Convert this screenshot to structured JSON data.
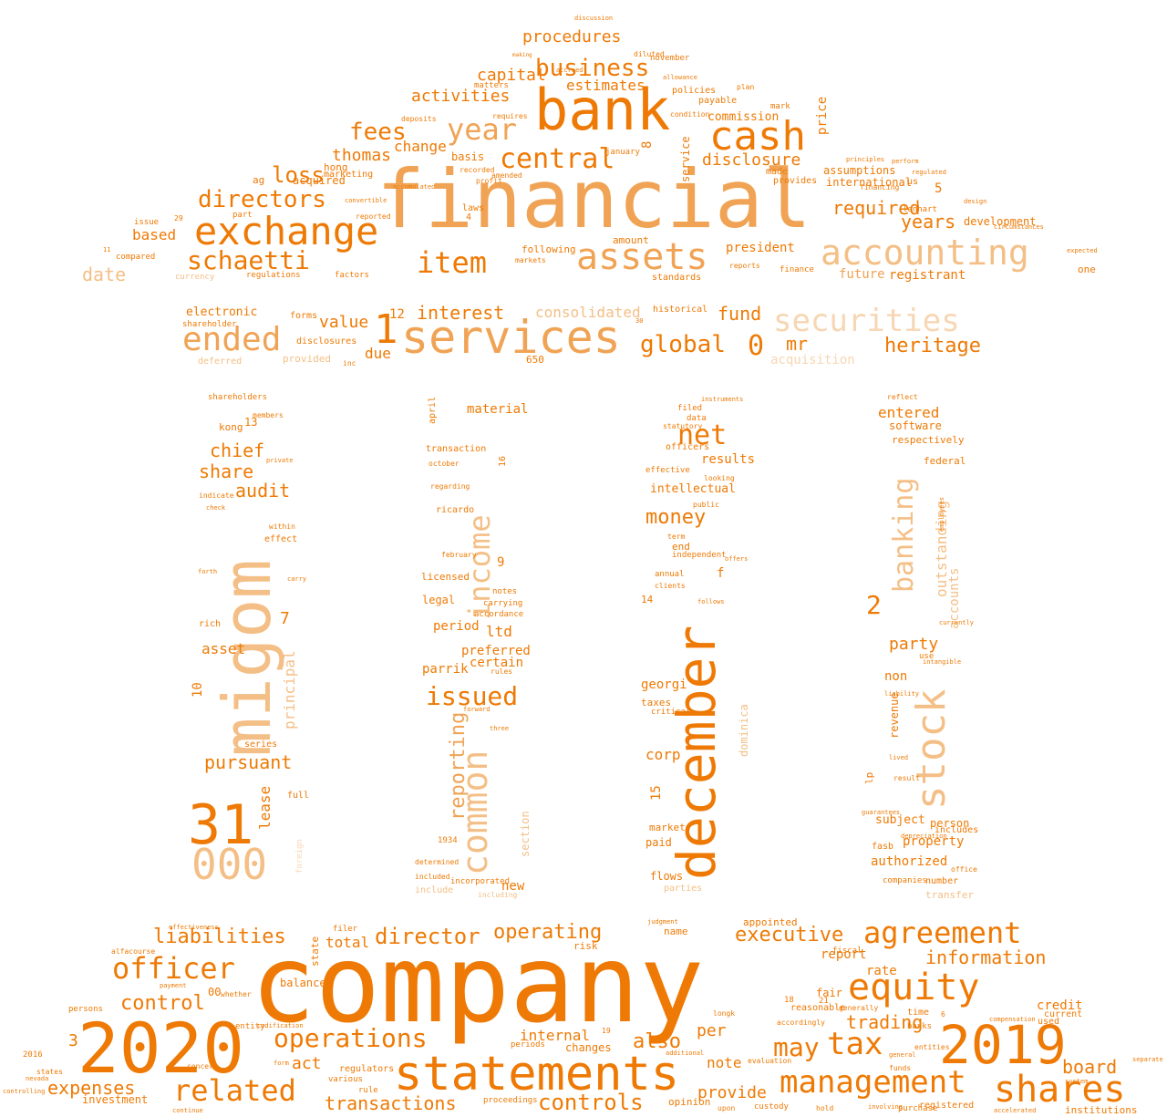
{
  "palette": {
    "dark": "#ee7a05",
    "mid": "#f0a354",
    "light": "#f4bf86",
    "pale": "#f7d6b3"
  },
  "words": [
    {
      "text": "company",
      "tone": "dark"
    },
    {
      "text": "financial",
      "tone": "mid"
    },
    {
      "text": "2020",
      "tone": "dark"
    },
    {
      "text": "2019",
      "tone": "dark"
    },
    {
      "text": "statements",
      "tone": "dark"
    },
    {
      "text": "bank",
      "tone": "dark"
    },
    {
      "text": "december",
      "tone": "dark"
    },
    {
      "text": "migom",
      "tone": "light"
    },
    {
      "text": "services",
      "tone": "mid"
    },
    {
      "text": "cash",
      "tone": "dark"
    },
    {
      "text": "exchange",
      "tone": "dark"
    },
    {
      "text": "accounting",
      "tone": "light"
    },
    {
      "text": "assets",
      "tone": "mid"
    },
    {
      "text": "stock",
      "tone": "light"
    },
    {
      "text": "shares",
      "tone": "dark"
    },
    {
      "text": "equity",
      "tone": "dark"
    },
    {
      "text": "management",
      "tone": "dark"
    },
    {
      "text": "tax",
      "tone": "dark"
    },
    {
      "text": "agreement",
      "tone": "dark"
    },
    {
      "text": "31",
      "tone": "dark"
    },
    {
      "text": "000",
      "tone": "light"
    },
    {
      "text": "securities",
      "tone": "pale"
    },
    {
      "text": "ended",
      "tone": "mid"
    },
    {
      "text": "year",
      "tone": "mid"
    },
    {
      "text": "item",
      "tone": "dark"
    },
    {
      "text": "schaetti",
      "tone": "dark"
    },
    {
      "text": "officer",
      "tone": "dark"
    },
    {
      "text": "related",
      "tone": "dark"
    },
    {
      "text": "business",
      "tone": "dark"
    },
    {
      "text": "central",
      "tone": "dark"
    },
    {
      "text": "common",
      "tone": "light"
    },
    {
      "text": "income",
      "tone": "light"
    },
    {
      "text": "banking",
      "tone": "light"
    },
    {
      "text": "operations",
      "tone": "dark"
    },
    {
      "text": "controls",
      "tone": "dark"
    },
    {
      "text": "may",
      "tone": "dark"
    },
    {
      "text": "net",
      "tone": "dark"
    },
    {
      "text": "issued",
      "tone": "dark"
    },
    {
      "text": "directors",
      "tone": "dark"
    },
    {
      "text": "liabilities",
      "tone": "dark"
    },
    {
      "text": "director",
      "tone": "dark"
    },
    {
      "text": "operating",
      "tone": "dark"
    },
    {
      "text": "executive",
      "tone": "dark"
    },
    {
      "text": "information",
      "tone": "dark"
    },
    {
      "text": "fees",
      "tone": "dark"
    },
    {
      "text": "loss",
      "tone": "dark"
    },
    {
      "text": "global",
      "tone": "dark"
    },
    {
      "text": "heritage",
      "tone": "dark"
    },
    {
      "text": "money",
      "tone": "dark"
    },
    {
      "text": "required",
      "tone": "dark"
    },
    {
      "text": "years",
      "tone": "dark"
    },
    {
      "text": "expenses",
      "tone": "dark"
    },
    {
      "text": "board",
      "tone": "dark"
    },
    {
      "text": "control",
      "tone": "dark"
    },
    {
      "text": "also",
      "tone": "dark"
    },
    {
      "text": "transactions",
      "tone": "dark"
    },
    {
      "text": "interest",
      "tone": "dark"
    },
    {
      "text": "consolidated",
      "tone": "light"
    },
    {
      "text": "procedures",
      "tone": "dark"
    },
    {
      "text": "activities",
      "tone": "dark"
    },
    {
      "text": "capital",
      "tone": "dark"
    },
    {
      "text": "estimates",
      "tone": "dark"
    },
    {
      "text": "disclosure",
      "tone": "dark"
    },
    {
      "text": "thomas",
      "tone": "dark"
    },
    {
      "text": "change",
      "tone": "dark"
    },
    {
      "text": "date",
      "tone": "light"
    },
    {
      "text": "based",
      "tone": "dark"
    },
    {
      "text": "value",
      "tone": "dark"
    },
    {
      "text": "due",
      "tone": "dark"
    },
    {
      "text": "fund",
      "tone": "dark"
    },
    {
      "text": "mr",
      "tone": "dark"
    },
    {
      "text": "president",
      "tone": "dark"
    },
    {
      "text": "international",
      "tone": "dark"
    },
    {
      "text": "assumptions",
      "tone": "dark"
    },
    {
      "text": "development",
      "tone": "dark"
    },
    {
      "text": "registrant",
      "tone": "dark"
    },
    {
      "text": "future",
      "tone": "mid"
    },
    {
      "text": "commission",
      "tone": "dark"
    },
    {
      "text": "reporting",
      "tone": "mid"
    },
    {
      "text": "principal",
      "tone": "light"
    },
    {
      "text": "outstanding",
      "tone": "light"
    },
    {
      "text": "chief",
      "tone": "dark"
    },
    {
      "text": "share",
      "tone": "dark"
    },
    {
      "text": "audit",
      "tone": "dark"
    },
    {
      "text": "pursuant",
      "tone": "dark"
    },
    {
      "text": "asset",
      "tone": "dark"
    },
    {
      "text": "lease",
      "tone": "dark"
    },
    {
      "text": "party",
      "tone": "dark"
    },
    {
      "text": "non",
      "tone": "dark"
    },
    {
      "text": "entered",
      "tone": "dark"
    },
    {
      "text": "software",
      "tone": "dark"
    },
    {
      "text": "respectively",
      "tone": "dark"
    },
    {
      "text": "federal",
      "tone": "dark"
    },
    {
      "text": "accounts",
      "tone": "light"
    },
    {
      "text": "revenue",
      "tone": "dark"
    },
    {
      "text": "property",
      "tone": "dark"
    },
    {
      "text": "authorized",
      "tone": "dark"
    },
    {
      "text": "subject",
      "tone": "dark"
    },
    {
      "text": "person",
      "tone": "dark"
    },
    {
      "text": "includes",
      "tone": "dark"
    },
    {
      "text": "material",
      "tone": "dark"
    },
    {
      "text": "ltd",
      "tone": "dark"
    },
    {
      "text": "preferred",
      "tone": "dark"
    },
    {
      "text": "certain",
      "tone": "dark"
    },
    {
      "text": "parrik",
      "tone": "dark"
    },
    {
      "text": "period",
      "tone": "dark"
    },
    {
      "text": "legal",
      "tone": "dark"
    },
    {
      "text": "licensed",
      "tone": "dark"
    },
    {
      "text": "new",
      "tone": "dark"
    },
    {
      "text": "section",
      "tone": "light"
    },
    {
      "text": "results",
      "tone": "dark"
    },
    {
      "text": "intellectual",
      "tone": "dark"
    },
    {
      "text": "georgi",
      "tone": "dark"
    },
    {
      "text": "taxes",
      "tone": "dark"
    },
    {
      "text": "corp",
      "tone": "dark"
    },
    {
      "text": "market",
      "tone": "dark"
    },
    {
      "text": "paid",
      "tone": "dark"
    },
    {
      "text": "flows",
      "tone": "dark"
    },
    {
      "text": "dominica",
      "tone": "light"
    },
    {
      "text": "total",
      "tone": "dark"
    },
    {
      "text": "act",
      "tone": "dark"
    },
    {
      "text": "internal",
      "tone": "dark"
    },
    {
      "text": "provide",
      "tone": "dark"
    },
    {
      "text": "note",
      "tone": "dark"
    },
    {
      "text": "per",
      "tone": "dark"
    },
    {
      "text": "trading",
      "tone": "dark"
    },
    {
      "text": "report",
      "tone": "dark"
    },
    {
      "text": "rate",
      "tone": "dark"
    },
    {
      "text": "fair",
      "tone": "dark"
    },
    {
      "text": "credit",
      "tone": "dark"
    },
    {
      "text": "balance",
      "tone": "dark"
    },
    {
      "text": "investment",
      "tone": "dark"
    },
    {
      "text": "electronic",
      "tone": "dark"
    },
    {
      "text": "acquisition",
      "tone": "pale"
    },
    {
      "text": "historical",
      "tone": "dark"
    },
    {
      "text": "payable",
      "tone": "dark"
    },
    {
      "text": "policies",
      "tone": "dark"
    },
    {
      "text": "price",
      "tone": "dark"
    },
    {
      "text": "service",
      "tone": "dark"
    },
    {
      "text": "made",
      "tone": "dark"
    },
    {
      "text": "provides",
      "tone": "dark"
    },
    {
      "text": "following",
      "tone": "dark"
    },
    {
      "text": "amount",
      "tone": "dark"
    },
    {
      "text": "laws",
      "tone": "dark"
    },
    {
      "text": "basis",
      "tone": "dark"
    },
    {
      "text": "acquired",
      "tone": "dark"
    },
    {
      "text": "hong",
      "tone": "dark"
    },
    {
      "text": "marketing",
      "tone": "dark"
    },
    {
      "text": "kong",
      "tone": "dark"
    },
    {
      "text": "shareholders",
      "tone": "dark"
    },
    {
      "text": "one",
      "tone": "dark"
    },
    {
      "text": "appointed",
      "tone": "dark"
    },
    {
      "text": "name",
      "tone": "dark"
    },
    {
      "text": "risk",
      "tone": "dark"
    },
    {
      "text": "changes",
      "tone": "dark"
    },
    {
      "text": "opinion",
      "tone": "dark"
    },
    {
      "text": "registered",
      "tone": "dark"
    },
    {
      "text": "institutions",
      "tone": "dark"
    },
    {
      "text": "current",
      "tone": "dark"
    },
    {
      "text": "used",
      "tone": "dark"
    },
    {
      "text": "time",
      "tone": "dark"
    },
    {
      "text": "regulators",
      "tone": "dark"
    },
    {
      "text": "various",
      "tone": "dark"
    },
    {
      "text": "proceedings",
      "tone": "dark"
    },
    {
      "text": "periods",
      "tone": "dark"
    },
    {
      "text": "state",
      "tone": "dark"
    },
    {
      "text": "1",
      "tone": "dark"
    },
    {
      "text": "0",
      "tone": "dark"
    },
    {
      "text": "2",
      "tone": "dark"
    },
    {
      "text": "3",
      "tone": "dark"
    },
    {
      "text": "5",
      "tone": "dark"
    },
    {
      "text": "7",
      "tone": "dark"
    },
    {
      "text": "8",
      "tone": "dark"
    },
    {
      "text": "9",
      "tone": "dark"
    },
    {
      "text": "10",
      "tone": "dark"
    },
    {
      "text": "12",
      "tone": "dark"
    },
    {
      "text": "13",
      "tone": "dark"
    },
    {
      "text": "14",
      "tone": "dark"
    },
    {
      "text": "15",
      "tone": "dark"
    },
    {
      "text": "16",
      "tone": "dark"
    },
    {
      "text": "650",
      "tone": "dark"
    },
    {
      "text": "f",
      "tone": "dark"
    },
    {
      "text": "lp",
      "tone": "dark"
    },
    {
      "text": "end",
      "tone": "dark"
    },
    {
      "text": "annual",
      "tone": "dark"
    },
    {
      "text": "clients",
      "tone": "dark"
    },
    {
      "text": "independent",
      "tone": "dark"
    },
    {
      "text": "effect",
      "tone": "dark"
    },
    {
      "text": "series",
      "tone": "dark"
    },
    {
      "text": "full",
      "tone": "dark"
    },
    {
      "text": "rich",
      "tone": "dark"
    },
    {
      "text": "ricardo",
      "tone": "dark"
    },
    {
      "text": "transaction",
      "tone": "dark"
    },
    {
      "text": "april",
      "tone": "dark"
    },
    {
      "text": "fasb",
      "tone": "dark"
    },
    {
      "text": "companies",
      "tone": "dark"
    },
    {
      "text": "number",
      "tone": "dark"
    },
    {
      "text": "transfer",
      "tone": "light"
    },
    {
      "text": "incorporated",
      "tone": "dark"
    },
    {
      "text": "include",
      "tone": "light"
    },
    {
      "text": "deferred",
      "tone": "light"
    },
    {
      "text": "provided",
      "tone": "light"
    },
    {
      "text": "disclosures",
      "tone": "dark"
    },
    {
      "text": "inc",
      "tone": "dark"
    },
    {
      "text": "forms",
      "tone": "dark"
    },
    {
      "text": "shareholder",
      "tone": "dark"
    },
    {
      "text": "compared",
      "tone": "dark"
    },
    {
      "text": "currency",
      "tone": "light"
    },
    {
      "text": "regulations",
      "tone": "dark"
    },
    {
      "text": "issue",
      "tone": "dark"
    },
    {
      "text": "ag",
      "tone": "dark"
    },
    {
      "text": "part",
      "tone": "dark"
    },
    {
      "text": "standards",
      "tone": "dark"
    },
    {
      "text": "finance",
      "tone": "dark"
    },
    {
      "text": "lenhart",
      "tone": "dark"
    },
    {
      "text": "financing",
      "tone": "dark"
    },
    {
      "text": "us",
      "tone": "dark"
    },
    {
      "text": "regulated",
      "tone": "dark"
    },
    {
      "text": "principles",
      "tone": "dark"
    },
    {
      "text": "perform",
      "tone": "dark"
    },
    {
      "text": "november",
      "tone": "dark"
    },
    {
      "text": "diluted",
      "tone": "dark"
    },
    {
      "text": "allowance",
      "tone": "dark"
    },
    {
      "text": "plan",
      "tone": "dark"
    },
    {
      "text": "mark",
      "tone": "dark"
    },
    {
      "text": "condition",
      "tone": "dark"
    },
    {
      "text": "january",
      "tone": "dark"
    },
    {
      "text": "reports",
      "tone": "dark"
    },
    {
      "text": "accrued",
      "tone": "dark"
    },
    {
      "text": "matters",
      "tone": "dark"
    },
    {
      "text": "making",
      "tone": "dark"
    },
    {
      "text": "deposits",
      "tone": "dark"
    },
    {
      "text": "requires",
      "tone": "dark"
    },
    {
      "text": "recorded",
      "tone": "dark"
    },
    {
      "text": "profit",
      "tone": "dark"
    },
    {
      "text": "amended",
      "tone": "dark"
    },
    {
      "text": "accumulated",
      "tone": "dark"
    },
    {
      "text": "convertible",
      "tone": "dark"
    },
    {
      "text": "reported",
      "tone": "dark"
    },
    {
      "text": "markets",
      "tone": "dark"
    },
    {
      "text": "factors",
      "tone": "dark"
    },
    {
      "text": "filed",
      "tone": "dark"
    },
    {
      "text": "data",
      "tone": "dark"
    },
    {
      "text": "statutory",
      "tone": "dark"
    },
    {
      "text": "officers",
      "tone": "dark"
    },
    {
      "text": "effective",
      "tone": "dark"
    },
    {
      "text": "looking",
      "tone": "dark"
    },
    {
      "text": "public",
      "tone": "dark"
    },
    {
      "text": "term",
      "tone": "dark"
    },
    {
      "text": "offers",
      "tone": "dark"
    },
    {
      "text": "follows",
      "tone": "dark"
    },
    {
      "text": "critical",
      "tone": "dark"
    },
    {
      "text": "parties",
      "tone": "light"
    },
    {
      "text": "instruments",
      "tone": "dark"
    },
    {
      "text": "reflect",
      "tone": "dark"
    },
    {
      "text": "liability",
      "tone": "dark"
    },
    {
      "text": "currently",
      "tone": "dark"
    },
    {
      "text": "use",
      "tone": "dark"
    },
    {
      "text": "result",
      "tone": "dark"
    },
    {
      "text": "lived",
      "tone": "dark"
    },
    {
      "text": "office",
      "tone": "dark"
    },
    {
      "text": "evaluation",
      "tone": "dark"
    },
    {
      "text": "custody",
      "tone": "dark"
    },
    {
      "text": "purchase",
      "tone": "dark"
    },
    {
      "text": "entities",
      "tone": "dark"
    },
    {
      "text": "banks",
      "tone": "dark"
    },
    {
      "text": "longk",
      "tone": "dark"
    },
    {
      "text": "reasonable",
      "tone": "dark"
    },
    {
      "text": "accordingly",
      "tone": "dark"
    },
    {
      "text": "generally",
      "tone": "dark"
    },
    {
      "text": "fiscal",
      "tone": "dark"
    },
    {
      "text": "entity",
      "tone": "dark"
    },
    {
      "text": "codification",
      "tone": "dark"
    },
    {
      "text": "form",
      "tone": "dark"
    },
    {
      "text": "rule",
      "tone": "dark"
    },
    {
      "text": "continue",
      "tone": "dark"
    },
    {
      "text": "persons",
      "tone": "dark"
    },
    {
      "text": "payment",
      "tone": "dark"
    },
    {
      "text": "alfacourse",
      "tone": "dark"
    },
    {
      "text": "effectiveness",
      "tone": "dark"
    },
    {
      "text": "judgment",
      "tone": "dark"
    },
    {
      "text": "filer",
      "tone": "dark"
    },
    {
      "text": "separate",
      "tone": "dark"
    },
    {
      "text": "2016",
      "tone": "dark"
    },
    {
      "text": "nevada",
      "tone": "dark"
    },
    {
      "text": "states",
      "tone": "dark"
    },
    {
      "text": "controlling",
      "tone": "dark"
    },
    {
      "text": "00",
      "tone": "dark"
    },
    {
      "text": "18",
      "tone": "dark"
    },
    {
      "text": "21",
      "tone": "dark"
    },
    {
      "text": "4",
      "tone": "dark"
    },
    {
      "text": "11",
      "tone": "dark"
    },
    {
      "text": "29",
      "tone": "dark"
    },
    {
      "text": "30",
      "tone": "dark"
    },
    {
      "text": "19",
      "tone": "dark"
    },
    {
      "text": "6",
      "tone": "dark"
    },
    {
      "text": "expected",
      "tone": "dark"
    },
    {
      "text": "circumstances",
      "tone": "dark"
    },
    {
      "text": "discussion",
      "tone": "dark"
    },
    {
      "text": "stefan",
      "tone": "dark"
    },
    {
      "text": "additional",
      "tone": "dark"
    },
    {
      "text": "upon",
      "tone": "dark"
    },
    {
      "text": "hold",
      "tone": "dark"
    },
    {
      "text": "involving",
      "tone": "dark"
    },
    {
      "text": "system",
      "tone": "dark"
    },
    {
      "text": "accelerated",
      "tone": "dark"
    },
    {
      "text": "accordance",
      "tone": "dark"
    },
    {
      "text": "carrying",
      "tone": "dark"
    },
    {
      "text": "notes",
      "tone": "dark"
    },
    {
      "text": "regarding",
      "tone": "dark"
    },
    {
      "text": "october",
      "tone": "dark"
    },
    {
      "text": "february",
      "tone": "dark"
    },
    {
      "text": "rules",
      "tone": "dark"
    },
    {
      "text": "forward",
      "tone": "dark"
    },
    {
      "text": "three",
      "tone": "dark"
    },
    {
      "text": "determined",
      "tone": "dark"
    },
    {
      "text": "included",
      "tone": "dark"
    },
    {
      "text": "1934",
      "tone": "dark"
    },
    {
      "text": "including",
      "tone": "light"
    },
    {
      "text": "members",
      "tone": "dark"
    },
    {
      "text": "indicate",
      "tone": "dark"
    },
    {
      "text": "check",
      "tone": "dark"
    },
    {
      "text": "within",
      "tone": "dark"
    },
    {
      "text": "forth",
      "tone": "dark"
    },
    {
      "text": "carry",
      "tone": "dark"
    },
    {
      "text": "private",
      "tone": "dark"
    },
    {
      "text": "foreign",
      "tone": "pale"
    },
    {
      "text": "employees",
      "tone": "dark"
    },
    {
      "text": "guarantees",
      "tone": "dark"
    },
    {
      "text": "depreciation",
      "tone": "dark"
    },
    {
      "text": "intangible",
      "tone": "dark"
    },
    {
      "text": "design",
      "tone": "dark"
    },
    {
      "text": "concern",
      "tone": "dark"
    },
    {
      "text": "funds",
      "tone": "dark"
    },
    {
      "text": "general",
      "tone": "dark"
    },
    {
      "text": "compensation",
      "tone": "dark"
    },
    {
      "text": "whether",
      "tone": "dark"
    }
  ]
}
